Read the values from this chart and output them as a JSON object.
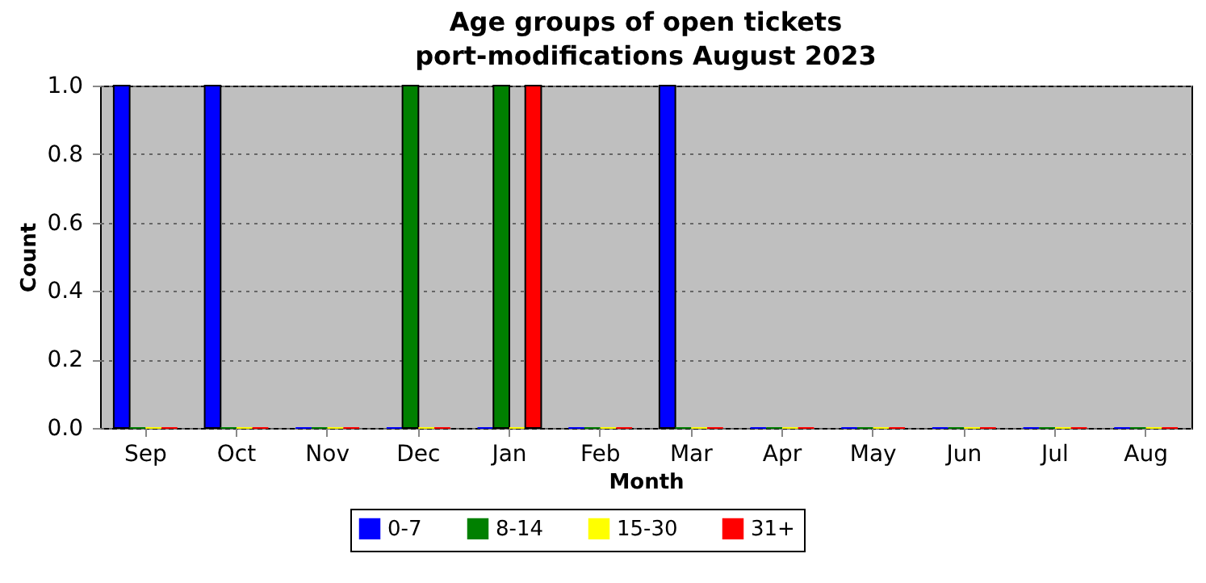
{
  "chart_data": {
    "type": "bar",
    "title": "Age groups of open tickets\nport-modifications August 2023",
    "xlabel": "Month",
    "ylabel": "Count",
    "categories": [
      "Sep",
      "Oct",
      "Nov",
      "Dec",
      "Jan",
      "Feb",
      "Mar",
      "Apr",
      "May",
      "Jun",
      "Jul",
      "Aug"
    ],
    "series": [
      {
        "name": "0-7",
        "color": "#0000ff",
        "values": [
          1,
          1,
          0,
          0,
          0,
          0,
          1,
          0,
          0,
          0,
          0,
          0
        ]
      },
      {
        "name": "8-14",
        "color": "#008000",
        "values": [
          0,
          0,
          0,
          1,
          1,
          0,
          0,
          0,
          0,
          0,
          0,
          0
        ]
      },
      {
        "name": "15-30",
        "color": "#ffff00",
        "values": [
          0,
          0,
          0,
          0,
          0,
          0,
          0,
          0,
          0,
          0,
          0,
          0
        ]
      },
      {
        "name": "31+",
        "color": "#ff0000",
        "values": [
          0,
          0,
          0,
          0,
          1,
          0,
          0,
          0,
          0,
          0,
          0,
          0
        ]
      }
    ],
    "ylim": [
      0,
      1
    ],
    "yticks": [
      {
        "value": 0,
        "label": "0.0"
      },
      {
        "value": 0.2,
        "label": "0.2"
      },
      {
        "value": 0.4,
        "label": "0.4"
      },
      {
        "value": 0.6,
        "label": "0.6"
      },
      {
        "value": 0.8,
        "label": "0.8"
      },
      {
        "value": 1,
        "label": "1.0"
      }
    ],
    "grid": "y",
    "legend": "bottom"
  }
}
